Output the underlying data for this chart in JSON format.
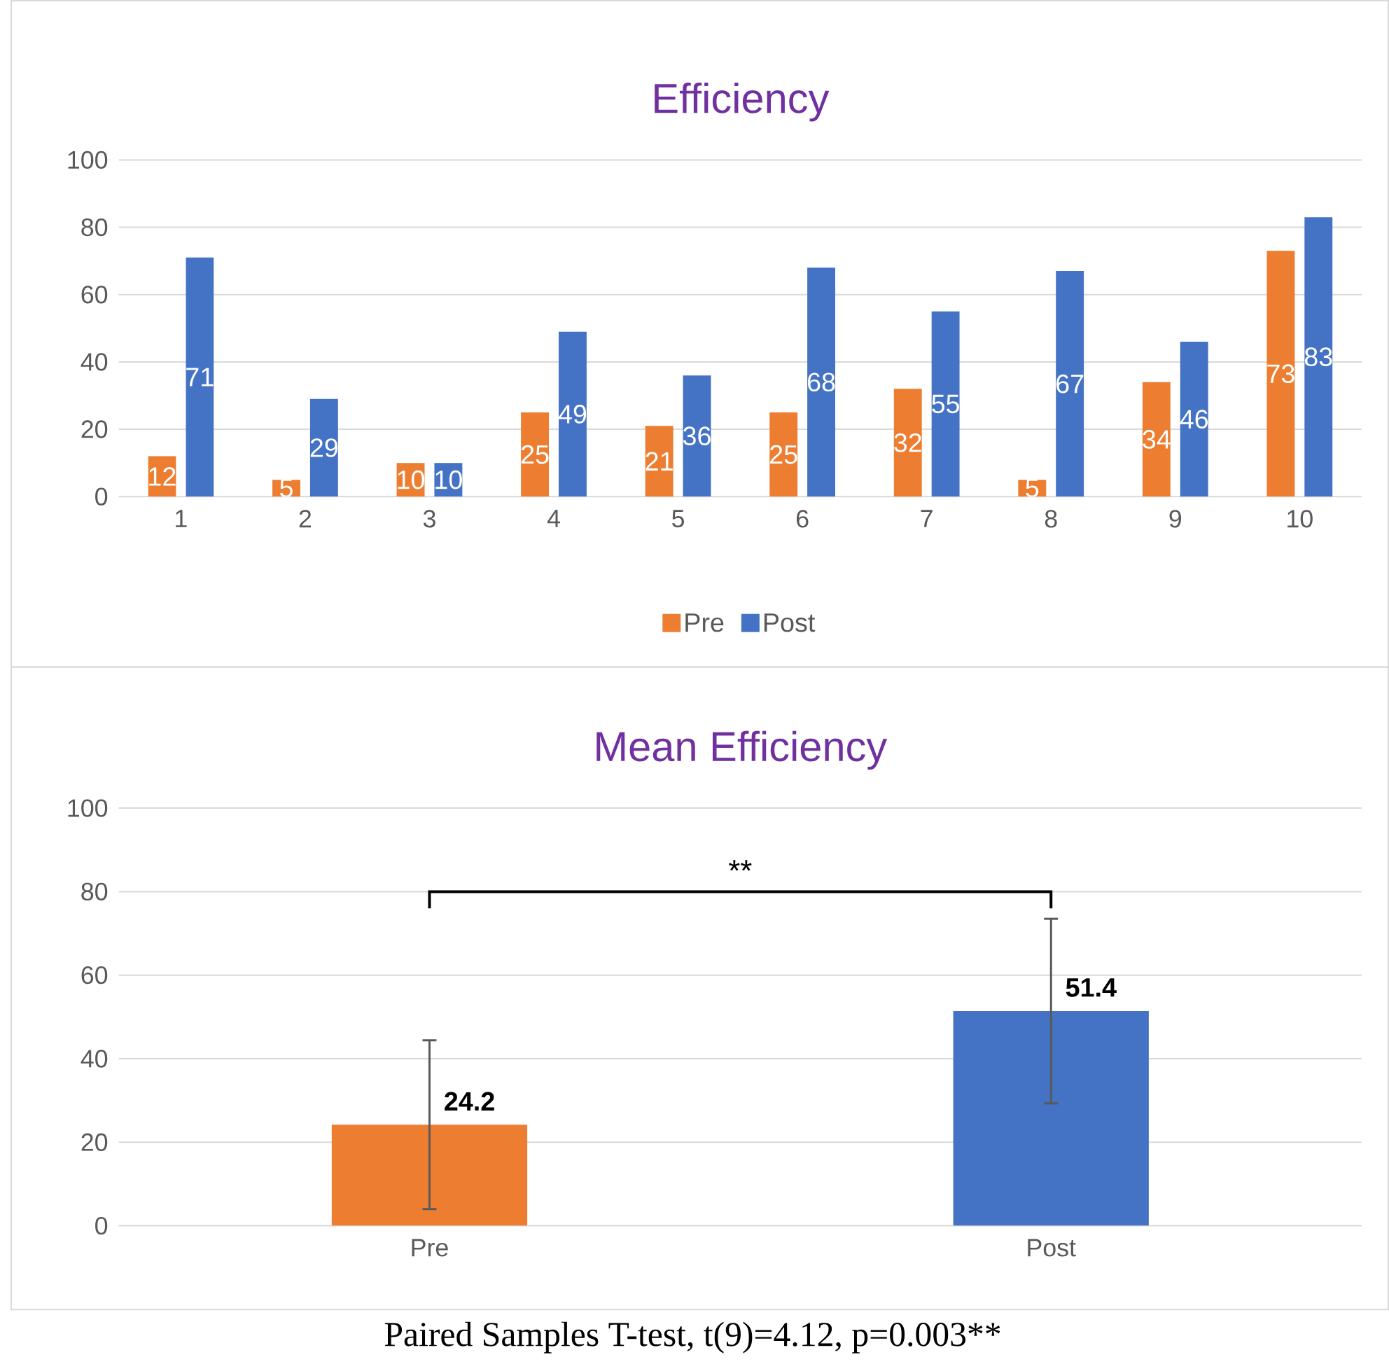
{
  "chart_data": [
    {
      "type": "bar",
      "title": "Efficiency",
      "categories": [
        "1",
        "2",
        "3",
        "4",
        "5",
        "6",
        "7",
        "8",
        "9",
        "10"
      ],
      "series": [
        {
          "name": "Pre",
          "color": "#ed7d31",
          "values": [
            12,
            5,
            10,
            25,
            21,
            25,
            32,
            5,
            34,
            73
          ]
        },
        {
          "name": "Post",
          "color": "#4472c4",
          "values": [
            71,
            29,
            10,
            49,
            36,
            68,
            55,
            67,
            46,
            83
          ]
        }
      ],
      "ylim": [
        0,
        100
      ],
      "yticks": [
        0,
        20,
        40,
        60,
        80,
        100
      ],
      "grid": "y",
      "legend": "bottom",
      "data_labels": true
    },
    {
      "type": "bar",
      "title": "Mean Efficiency",
      "categories": [
        "Pre",
        "Post"
      ],
      "values": [
        24.2,
        51.4
      ],
      "colors": [
        "#ed7d31",
        "#4472c4"
      ],
      "errors": [
        20.2,
        22.1
      ],
      "ylim": [
        0,
        100
      ],
      "yticks": [
        0,
        20,
        40,
        60,
        80,
        100
      ],
      "grid": "y",
      "data_labels": true,
      "annotations": [
        "**",
        "Paired Samples T-test, t(9)=4.12, p=0.003**"
      ]
    }
  ]
}
